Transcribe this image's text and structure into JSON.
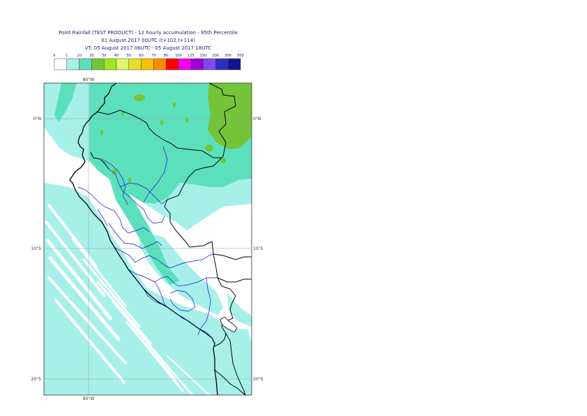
{
  "title": {
    "line1": "Point Rainfall (TEST PRODUCT) - 12 hourly accumulation - 95th Percentile",
    "line2": "01 August 2017 00UTC (t+102,t+114)",
    "line3": "VT: 05 August 2017 06UTC - 05 August 2017 18UTC"
  },
  "legend": {
    "thresholds": [
      "0",
      "1",
      "10",
      "20",
      "30",
      "40",
      "50",
      "60",
      "70",
      "80",
      "100",
      "125",
      "150",
      "200",
      "300",
      "500"
    ],
    "colors": [
      "#ffffff",
      "#a7f0ea",
      "#5ce0bc",
      "#74c43a",
      "#9ee620",
      "#e2f56a",
      "#e4e02a",
      "#fcc000",
      "#fe8a00",
      "#fe0000",
      "#f200f2",
      "#a000d4",
      "#7a4bf0",
      "#2e2ec0",
      "#14148a"
    ]
  },
  "axes": {
    "lon_top": "80°W",
    "lon_bottom": "80°W",
    "lat_labels": [
      "0°N",
      "10°S",
      "20°S"
    ]
  },
  "colors": {
    "light_rain": "#a7f0ea",
    "moderate_rain": "#5ce0bc",
    "heavy_rain": "#74c43a",
    "coast": "#000000",
    "boundaries": "#1111cc"
  }
}
